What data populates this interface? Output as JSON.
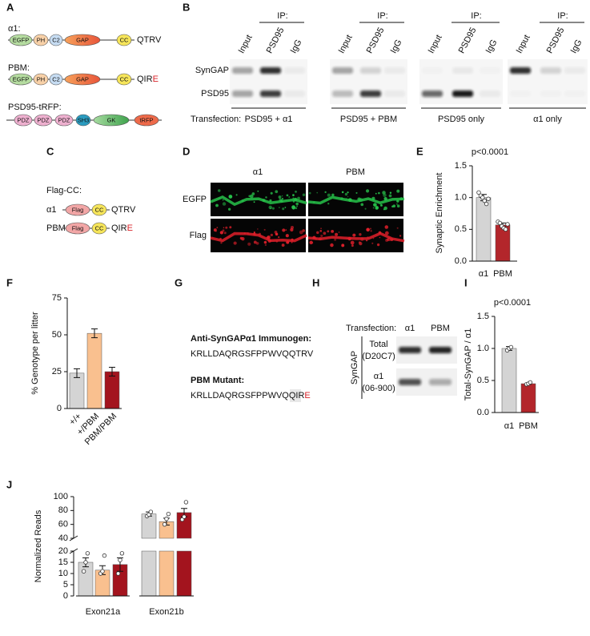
{
  "panel_labels": [
    "A",
    "B",
    "C",
    "D",
    "E",
    "F",
    "G",
    "H",
    "I",
    "J"
  ],
  "panel_a": {
    "constructs": [
      {
        "label": "α1:",
        "domains": [
          "EGFP",
          "PH",
          "C2",
          "GAP",
          "CC"
        ],
        "tail": "QTRV"
      },
      {
        "label": "PBM:",
        "domains": [
          "EGFP",
          "PH",
          "C2",
          "GAP",
          "CC"
        ],
        "tail": "QIR",
        "tail_mutation": "E"
      },
      {
        "label": "PSD95-tRFP:",
        "domains": [
          "PDZ",
          "PDZ",
          "PDZ",
          "SH3",
          "GK",
          "tRFP"
        ]
      }
    ]
  },
  "panel_b": {
    "ip_label": "IP:",
    "lanes": [
      "Input",
      "PSD95",
      "IgG"
    ],
    "rows": [
      "SynGAP",
      "PSD95"
    ],
    "transfection_label": "Transfection:",
    "groups": [
      "PSD95 + α1",
      "PSD95 + PBM",
      "PSD95 only",
      "α1 only"
    ]
  },
  "panel_c": {
    "title": "Flag-CC:",
    "constructs": [
      {
        "label": "α1",
        "domains": [
          "Flag",
          "CC"
        ],
        "tail": "QTRV"
      },
      {
        "label": "PBM",
        "domains": [
          "Flag",
          "CC"
        ],
        "tail": "QIR",
        "tail_mutation": "E"
      }
    ]
  },
  "panel_d": {
    "columns": [
      "α1",
      "PBM"
    ],
    "rows": [
      "EGFP",
      "Flag"
    ]
  },
  "panel_g": {
    "immunogen_title": "Anti-SynGAPα1 Immunogen:",
    "immunogen_sequence": "KRLLDAQRGSFPPWVQQTRV",
    "mutant_title": "PBM Mutant:",
    "mutant_sequence": "KRLLDAQRGSFPPWVQQIR",
    "mutant_residue": "E"
  },
  "panel_h": {
    "transfection_label": "Transfection:",
    "columns": [
      "α1",
      "PBM"
    ],
    "row_group": "SynGAP",
    "rows": [
      {
        "name": "Total",
        "antibody": "(D20C7)"
      },
      {
        "name": "α1",
        "antibody": "(06-900)"
      }
    ]
  },
  "chart_data": [
    {
      "type": "bar",
      "title": "p<0.0001",
      "y_label": "Synaptic Enrichment",
      "categories": [
        "α1",
        "PBM"
      ],
      "values": [
        1.0,
        0.57
      ],
      "errors": [
        0.05,
        0.03
      ],
      "points": [
        [
          1.08,
          1.03,
          1.0,
          0.95,
          0.9,
          0.98
        ],
        [
          0.62,
          0.6,
          0.55,
          0.52,
          0.5,
          0.58
        ]
      ],
      "colors": [
        "#d4d4d4",
        "#b3262b"
      ],
      "ylim": [
        0,
        1.5
      ],
      "yticks": [
        {
          "value": 0,
          "label": "0.0"
        },
        {
          "value": 0.5,
          "label": "0.5"
        },
        {
          "value": 1,
          "label": "1.0"
        },
        {
          "value": 1.5,
          "label": "1.5"
        }
      ]
    },
    {
      "type": "bar",
      "y_label": "% Genotype per litter",
      "categories": [
        "+/+",
        "+/PBM",
        "PBM/PBM"
      ],
      "values": [
        24,
        51,
        25
      ],
      "errors": [
        3,
        3,
        3
      ],
      "colors": [
        "#d4d4d4",
        "#f9c08f",
        "#a3141e"
      ],
      "ylim": [
        0,
        75
      ],
      "yticks": [
        0,
        25,
        50,
        75
      ]
    },
    {
      "type": "bar",
      "title": "p<0.0001",
      "y_label": "Total-SynGAP / α1",
      "categories": [
        "α1",
        "PBM"
      ],
      "values": [
        1.0,
        0.45
      ],
      "errors": [
        0.03,
        0.01
      ],
      "points": [
        [
          0.97,
          1.0,
          1.02
        ],
        [
          0.44,
          0.45,
          0.47
        ]
      ],
      "colors": [
        "#d4d4d4",
        "#b3262b"
      ],
      "ylim": [
        0,
        1.5
      ],
      "yticks": [
        {
          "value": 0,
          "label": "0.0"
        },
        {
          "value": 0.5,
          "label": "0.5"
        },
        {
          "value": 1,
          "label": "1.0"
        },
        {
          "value": 1.5,
          "label": "1.5"
        }
      ]
    },
    {
      "type": "grouped_bar",
      "y_label": "Normalized Reads",
      "categories": [
        "Exon21a",
        "Exon21b"
      ],
      "series": [
        {
          "color": "#d4d4d4",
          "values": [
            15,
            75
          ],
          "errors": [
            2,
            3
          ],
          "points": [
            [
              11,
              15,
              19
            ],
            [
              72,
              74,
              78
            ]
          ]
        },
        {
          "color": "#f9c08f",
          "values": [
            11.5,
            64
          ],
          "errors": [
            2,
            5
          ],
          "points": [
            [
              10,
              11,
              18
            ],
            [
              60,
              68,
              75
            ]
          ]
        },
        {
          "color": "#a3141e",
          "values": [
            14,
            77
          ],
          "errors": [
            3,
            6
          ],
          "points": [
            [
              10,
              16,
              19
            ],
            [
              67,
              71,
              92
            ]
          ]
        }
      ],
      "ylim": [
        0,
        100
      ],
      "axis_break": [
        20,
        40
      ],
      "yticks": [
        0,
        5,
        10,
        15,
        20,
        40,
        60,
        80,
        100
      ]
    }
  ]
}
